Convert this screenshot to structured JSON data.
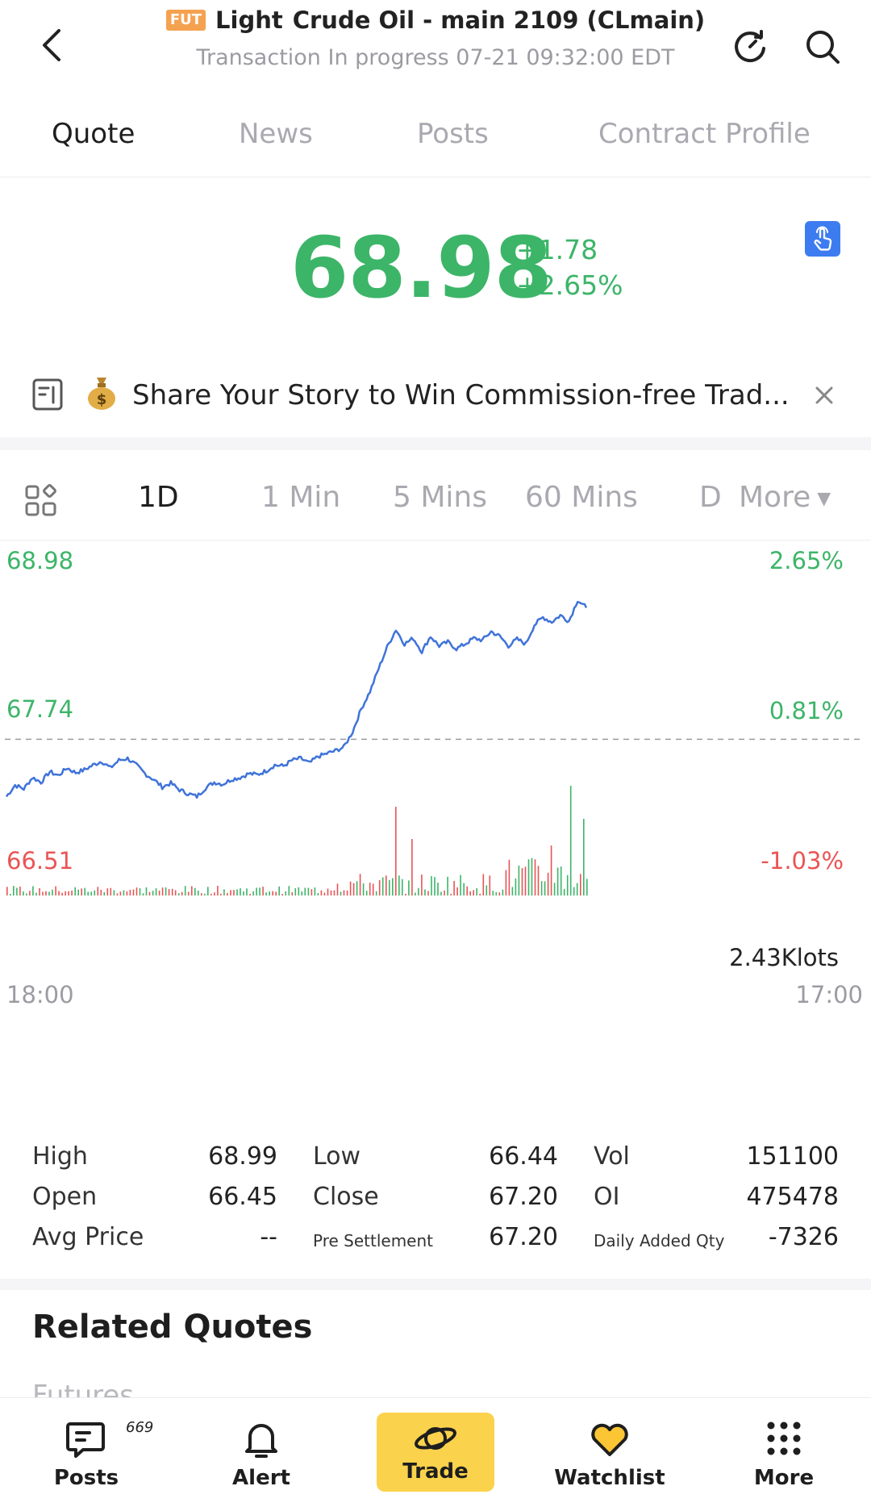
{
  "header": {
    "badge": "FUT",
    "title_a": "Light",
    "title_b": "Crude Oil - main 2109 (CLmain)",
    "subtitle": "Transaction In progress 07-21 09:32:00 EDT"
  },
  "tabs": [
    "Quote",
    "News",
    "Posts",
    "Contract Profile"
  ],
  "price": {
    "last": "68.98",
    "change": "+1.78",
    "change_pct": "+2.65%"
  },
  "banner": {
    "text": "Share Your Story to Win Commission-free Trad..."
  },
  "intervals": {
    "items": [
      "1D",
      "1 Min",
      "5 Mins",
      "60 Mins"
    ],
    "partial": "D",
    "more": "More"
  },
  "chart_data": {
    "type": "line",
    "y_left_labels": [
      "68.98",
      "67.74",
      "66.51"
    ],
    "y_right_labels": [
      "2.65%",
      "0.81%",
      "-1.03%"
    ],
    "x_labels": [
      "18:00",
      "17:00"
    ],
    "volume_label": "2.43Klots",
    "ylim": [
      66.51,
      68.98
    ],
    "reference_value": 67.2,
    "colors": {
      "line": "#3f73d9",
      "up": "#3cb568",
      "down": "#ea5455"
    },
    "price_points": [
      66.6,
      66.72,
      66.68,
      66.8,
      66.75,
      66.86,
      66.82,
      66.9,
      66.85,
      66.88,
      66.93,
      66.97,
      66.9,
      66.98,
      67.0,
      66.93,
      66.84,
      66.78,
      66.7,
      66.74,
      66.67,
      66.63,
      66.6,
      66.69,
      66.75,
      66.73,
      66.78,
      66.8,
      66.84,
      66.83,
      66.87,
      66.93,
      66.92,
      66.98,
      67.0,
      66.95,
      67.02,
      67.05,
      67.08,
      67.12,
      67.28,
      67.52,
      67.7,
      67.94,
      68.17,
      68.35,
      68.2,
      68.26,
      68.12,
      68.28,
      68.18,
      68.22,
      68.15,
      68.2,
      68.26,
      68.24,
      68.33,
      68.28,
      68.18,
      68.25,
      68.2,
      68.4,
      68.48,
      68.43,
      68.5,
      68.44,
      68.66,
      68.58
    ]
  },
  "stats": {
    "high_label": "High",
    "high": "68.99",
    "low_label": "Low",
    "low": "66.44",
    "vol_label": "Vol",
    "vol": "151100",
    "open_label": "Open",
    "open": "66.45",
    "close_label": "Close",
    "close": "67.20",
    "oi_label": "OI",
    "oi": "475478",
    "avg_label": "Avg Price",
    "avg": "--",
    "presettle_label": "Pre Settlement",
    "presettle": "67.20",
    "added_label": "Daily Added Qty",
    "added": "-7326"
  },
  "related": {
    "title": "Related Quotes",
    "sub": "Futures"
  },
  "nav": {
    "posts": "Posts",
    "posts_count": "669",
    "alert": "Alert",
    "trade": "Trade",
    "watchlist": "Watchlist",
    "more": "More"
  }
}
